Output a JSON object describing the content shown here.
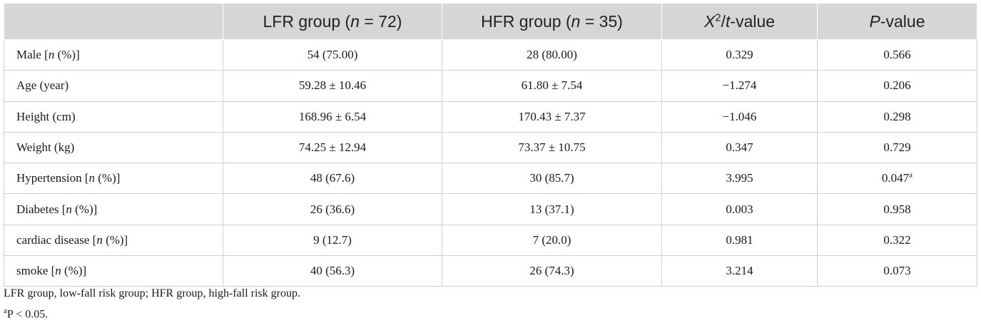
{
  "table": {
    "headers": {
      "col1": "",
      "lfr_prefix": "LFR group (",
      "lfr_n": "n",
      "lfr_suffix": " = 72)",
      "hfr_prefix": "HFR group (",
      "hfr_n": "n",
      "hfr_suffix": " = 35)",
      "stat_x": "X",
      "stat_sup": "2",
      "stat_t": "t",
      "stat_suffix": "-value",
      "p_italic": "P",
      "p_suffix": "-value"
    },
    "rows": [
      {
        "label_pre": "Male [",
        "label_it": "n",
        "label_post": " (%)]",
        "lfr": "54 (75.00)",
        "hfr": "28 (80.00)",
        "stat": "0.329",
        "p": "0.566",
        "p_sup": ""
      },
      {
        "label_pre": "Age (year)",
        "label_it": "",
        "label_post": "",
        "lfr": "59.28 ± 10.46",
        "hfr": "61.80 ± 7.54",
        "stat": "−1.274",
        "p": "0.206",
        "p_sup": ""
      },
      {
        "label_pre": "Height (cm)",
        "label_it": "",
        "label_post": "",
        "lfr": "168.96 ± 6.54",
        "hfr": "170.43 ± 7.37",
        "stat": "−1.046",
        "p": "0.298",
        "p_sup": ""
      },
      {
        "label_pre": "Weight (kg)",
        "label_it": "",
        "label_post": "",
        "lfr": "74.25 ± 12.94",
        "hfr": "73.37 ± 10.75",
        "stat": "0.347",
        "p": "0.729",
        "p_sup": ""
      },
      {
        "label_pre": "Hypertension [",
        "label_it": "n",
        "label_post": " (%)]",
        "lfr": "48 (67.6)",
        "hfr": "30 (85.7)",
        "stat": "3.995",
        "p": "0.047",
        "p_sup": "a"
      },
      {
        "label_pre": "Diabetes [",
        "label_it": "n",
        "label_post": " (%)]",
        "lfr": "26 (36.6)",
        "hfr": "13 (37.1)",
        "stat": "0.003",
        "p": "0.958",
        "p_sup": ""
      },
      {
        "label_pre": "cardiac disease [",
        "label_it": "n",
        "label_post": " (%)]",
        "lfr": "9 (12.7)",
        "hfr": "7 (20.0)",
        "stat": "0.981",
        "p": "0.322",
        "p_sup": ""
      },
      {
        "label_pre": "smoke [",
        "label_it": "n",
        "label_post": " (%)]",
        "lfr": "40 (56.3)",
        "hfr": "26 (74.3)",
        "stat": "3.214",
        "p": "0.073",
        "p_sup": ""
      }
    ]
  },
  "footnotes": {
    "abbrev": "LFR group, low-fall risk group; HFR group, high-fall risk group.",
    "sig_sup": "a",
    "sig_text": "P < 0.05."
  }
}
